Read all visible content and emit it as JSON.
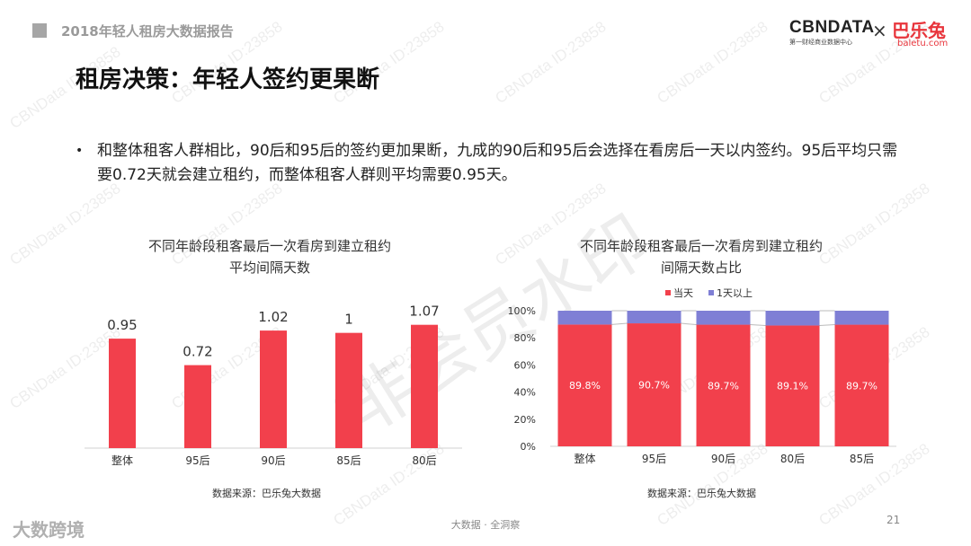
{
  "header": {
    "report_title": "2018年轻人租房大数据报告",
    "logo_cbn": "CBNDATA",
    "logo_cbn_sub": "第一财经商业数据中心",
    "logo_x": "×",
    "logo_baletu": "巴乐兔",
    "logo_baletu_sub": "baletu.com"
  },
  "page_title": "租房决策：年轻人签约更果断",
  "bullet_text": "和整体租客人群相比，90后和95后的签约更加果断，九成的90后和95后会选择在看房后一天以内签约。95后平均只需要0.72天就会建立租约，而整体租客人群则平均需要0.95天。",
  "chart_data": [
    {
      "type": "bar",
      "title": "不同年龄段租客最后一次看房到建立租约平均间隔天数",
      "title_line1": "不同年龄段租客最后一次看房到建立租约",
      "title_line2": "平均间隔天数",
      "categories": [
        "整体",
        "95后",
        "90后",
        "85后",
        "80后"
      ],
      "values": [
        0.95,
        0.72,
        1.02,
        1,
        1.07
      ],
      "value_labels": [
        "0.95",
        "0.72",
        "1.02",
        "1",
        "1.07"
      ],
      "ylim": [
        0,
        1.2
      ],
      "color": "#f2404c",
      "grid": false
    },
    {
      "type": "bar",
      "stacked": true,
      "percent": true,
      "title": "不同年龄段租客最后一次看房到建立租约间隔天数占比",
      "title_line1": "不同年龄段租客最后一次看房到建立租约",
      "title_line2": "间隔天数占比",
      "categories": [
        "整体",
        "95后",
        "90后",
        "80后",
        "85后"
      ],
      "series": [
        {
          "name": "当天",
          "values": [
            89.8,
            90.7,
            89.7,
            89.1,
            89.7
          ],
          "labels": [
            "89.8%",
            "90.7%",
            "89.7%",
            "89.1%",
            "89.7%"
          ],
          "color": "#f2404c"
        },
        {
          "name": "1天以上",
          "values": [
            10.2,
            9.3,
            10.3,
            10.9,
            10.3
          ],
          "color": "#7f7fd5"
        }
      ],
      "yticks": [
        "0%",
        "20%",
        "40%",
        "60%",
        "80%",
        "100%"
      ],
      "ylim": [
        0,
        100
      ],
      "legend": "top",
      "grid": false
    }
  ],
  "source_label": "数据来源：巴乐兔大数据",
  "footer_center": "大数据 · 全洞察",
  "page_number": "21",
  "brand": "大数跨境",
  "watermark_text": "CBNData ID:23858",
  "stamp_text": "非会员水印"
}
